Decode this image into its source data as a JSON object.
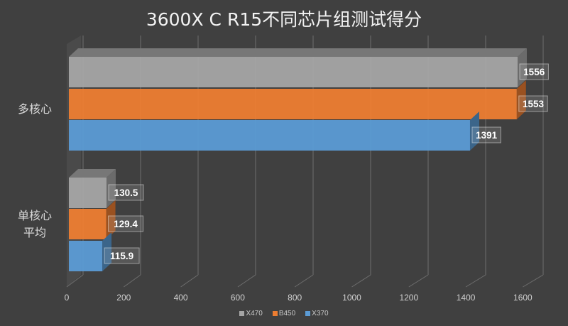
{
  "chart_data": {
    "type": "bar",
    "orientation": "horizontal",
    "style": "3d-clustered",
    "title": "3600X C R15不同芯片组测试得分",
    "categories": [
      "多核心",
      "单核心\n平均"
    ],
    "category_labels": [
      [
        "多核心"
      ],
      [
        "单核心",
        "平均"
      ]
    ],
    "series": [
      {
        "name": "X470",
        "color": "#a5a5a5",
        "values": [
          1556,
          130.5
        ]
      },
      {
        "name": "B450",
        "color": "#ed7d31",
        "values": [
          1553,
          129.4
        ]
      },
      {
        "name": "X370",
        "color": "#5b9bd5",
        "values": [
          1391,
          115.9
        ]
      }
    ],
    "data_labels": [
      [
        "1556",
        "130.5"
      ],
      [
        "1553",
        "129.4"
      ],
      [
        "1391",
        "115.9"
      ]
    ],
    "xlabel": "",
    "ylabel": "",
    "xlim": [
      0,
      1600
    ],
    "x_ticks": [
      "0",
      "200",
      "400",
      "600",
      "800",
      "1000",
      "1200",
      "1400",
      "1600"
    ],
    "grid": true,
    "legend_position": "bottom"
  },
  "colors": {
    "background": "#404040",
    "X470": "#a5a5a5",
    "B450": "#ed7d31",
    "X370": "#5b9bd5"
  }
}
